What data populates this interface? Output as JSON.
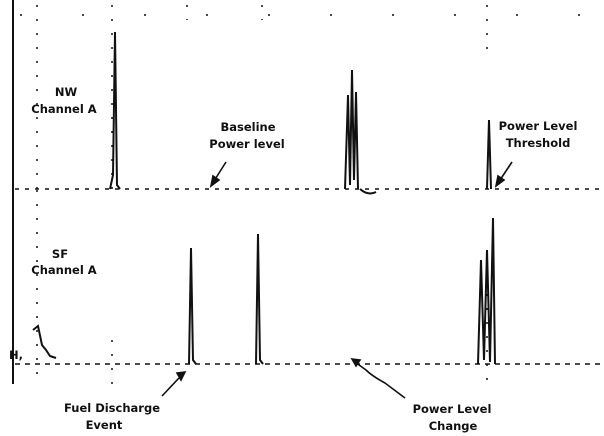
{
  "channels": {
    "top_line1": "NW",
    "top_line2": "Channel A",
    "bottom_line1": "SF",
    "bottom_line2": "Channel A",
    "left_marker": "H,"
  },
  "annotations": {
    "baseline_line1": "Baseline",
    "baseline_line2": "Power level",
    "threshold_line1": "Power Level",
    "threshold_line2": "Threshold",
    "fuel_line1": "Fuel Discharge",
    "fuel_line2": "Event",
    "change_line1": "Power Level",
    "change_line2": "Change"
  },
  "colors": {
    "ink": "#111111",
    "background": "#ffffff"
  }
}
